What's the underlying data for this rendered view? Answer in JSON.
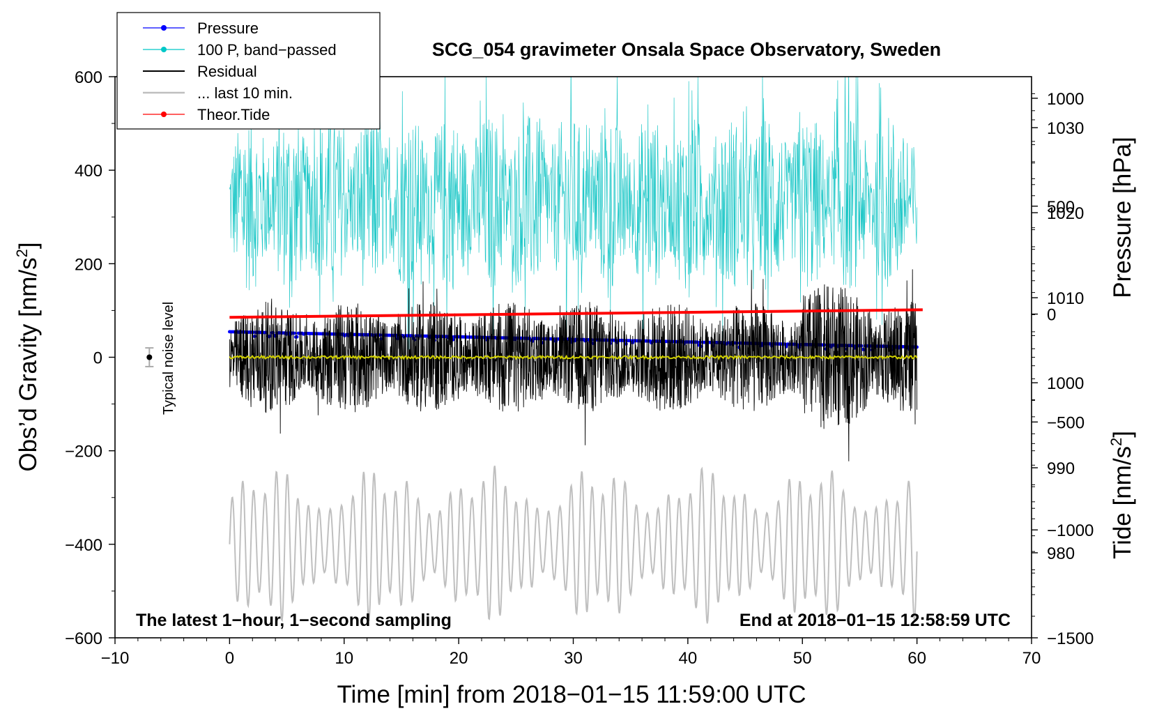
{
  "chart_data": {
    "type": "line",
    "title": "SCG_054 gravimeter Onsala Space Observatory, Sweden",
    "xlabel": "Time [min] from 2018−01−15 11:59:00 UTC",
    "xlim": [
      -10,
      70
    ],
    "xticks": [
      -10,
      0,
      10,
      20,
      30,
      40,
      50,
      60,
      70
    ],
    "xtick_labels": [
      "−10",
      "0",
      "10",
      "20",
      "30",
      "40",
      "50",
      "60",
      "70"
    ],
    "left_axis": {
      "label": "Obs’d Gravity [nm/s",
      "label_sup": "2",
      "label_end": "]",
      "lim": [
        -600,
        600
      ],
      "ticks": [
        600,
        400,
        200,
        0,
        -200,
        -400,
        -600
      ],
      "tick_labels": [
        "600",
        "400",
        "200",
        "0",
        "−200",
        "−400",
        "−600"
      ]
    },
    "pressure_axis": {
      "label": "Pressure [hPa]",
      "lim": [
        970,
        1036
      ],
      "ticks": [
        1030,
        1020,
        1010,
        1000,
        990,
        980
      ],
      "tick_labels": [
        "1030",
        "1020",
        "1010",
        "1000",
        "990",
        "980"
      ]
    },
    "tide_axis": {
      "label": "Tide [nm/s",
      "label_sup": "2",
      "label_end": "]",
      "lim": [
        -1500,
        1100
      ],
      "ticks": [
        1000,
        500,
        0,
        -500,
        -1000,
        -1500
      ],
      "tick_labels": [
        "1000",
        "500",
        "0",
        "−500",
        "−1000",
        "−1500"
      ]
    },
    "legend": {
      "placement": "top-left",
      "entries": [
        {
          "label": "Pressure",
          "color": "#0000ff",
          "marker": true
        },
        {
          "label": "100 P, band−passed",
          "color": "#00c8c8",
          "marker": true
        },
        {
          "label": "Residual",
          "color": "#000000",
          "marker": false
        },
        {
          "label": "... last 10 min.",
          "color": "#bfbfbf",
          "marker": false
        },
        {
          "label": "Theor.Tide",
          "color": "#ff0000",
          "marker": true
        }
      ]
    },
    "noise_marker": {
      "label": "Typical noise level",
      "x": -7,
      "y": 0,
      "error": 20
    },
    "annotations": {
      "bottom_left": "The latest 1−hour, 1−second sampling",
      "bottom_right": "End at 2018−01−15 12:58:59 UTC"
    },
    "series": [
      {
        "name": "Pressure",
        "axis": "pressure",
        "color": "#0000ff",
        "start": [
          0,
          1006.0
        ],
        "end": [
          60,
          1004.2
        ]
      },
      {
        "name": "100 P, band−passed",
        "axis": "gravity",
        "color": "#20c8c8",
        "range": [
          0,
          60
        ],
        "center": 330,
        "amplitude": 240
      },
      {
        "name": "Residual",
        "axis": "gravity",
        "color": "#000000",
        "range": [
          0,
          60
        ],
        "center": 0,
        "amplitude": 150
      },
      {
        "name": "Residual smoothed",
        "axis": "gravity",
        "color": "#d0d000",
        "range": [
          0,
          60
        ],
        "center": 0,
        "amplitude": 3
      },
      {
        "name": "... last 10 min.",
        "axis": "gravity",
        "color": "#bfbfbf",
        "range": [
          0,
          60
        ],
        "center": -400,
        "amplitude": 170
      },
      {
        "name": "Theor.Tide",
        "axis": "tide",
        "color": "#ff0000",
        "start": [
          0,
          -15
        ],
        "end": [
          60.5,
          20
        ]
      }
    ]
  }
}
